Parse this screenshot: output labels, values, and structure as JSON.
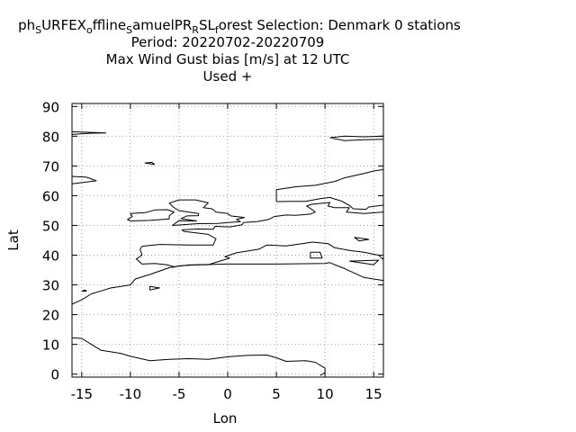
{
  "title": {
    "line1_parts": [
      {
        "t": "ph",
        "s": false
      },
      {
        "t": "S",
        "s": true
      },
      {
        "t": "URFEX",
        "s": false
      },
      {
        "t": "o",
        "s": true
      },
      {
        "t": "ffline",
        "s": false
      },
      {
        "t": "S",
        "s": true
      },
      {
        "t": "amuelPR",
        "s": false
      },
      {
        "t": "R",
        "s": true
      },
      {
        "t": "SL",
        "s": false
      },
      {
        "t": "f",
        "s": true
      },
      {
        "t": "orest   Selection: Denmark      0 stations",
        "s": false
      }
    ],
    "line2": "Period: 20220702-20220709",
    "line3": "Max Wind Gust bias [m/s] at  12 UTC",
    "line4": "Used   +"
  },
  "chart_data": {
    "type": "scatter",
    "xlabel": "Lon",
    "ylabel": "Lat",
    "xlim": [
      -16,
      16
    ],
    "ylim": [
      -1,
      91
    ],
    "xticks": [
      -15,
      -10,
      -5,
      0,
      5,
      10,
      15
    ],
    "yticks": [
      0,
      10,
      20,
      30,
      40,
      50,
      60,
      70,
      80,
      90
    ],
    "grid": true,
    "series": [],
    "coastlines": [
      [
        [
          -16,
          23.5
        ],
        [
          -15,
          25
        ],
        [
          -14,
          27
        ],
        [
          -13,
          28
        ],
        [
          -12,
          29
        ],
        [
          -10,
          30
        ],
        [
          -9.5,
          32
        ],
        [
          -8,
          33.5
        ],
        [
          -6,
          35.8
        ],
        [
          -5.5,
          36
        ],
        [
          -5,
          36.4
        ],
        [
          -3,
          36.8
        ],
        [
          0,
          37
        ],
        [
          5,
          37
        ],
        [
          10,
          37.2
        ],
        [
          10.5,
          37.5
        ],
        [
          11,
          36.8
        ],
        [
          12,
          35.5
        ],
        [
          14,
          32.5
        ],
        [
          15,
          32
        ],
        [
          16,
          31.5
        ]
      ],
      [
        [
          -16,
          12.2
        ],
        [
          -15,
          12
        ],
        [
          -14,
          10
        ],
        [
          -13,
          8
        ],
        [
          -11,
          7
        ],
        [
          -10,
          6
        ],
        [
          -8,
          4.5
        ],
        [
          -6,
          5
        ],
        [
          -4,
          5.2
        ],
        [
          -2,
          5
        ],
        [
          0,
          5.8
        ],
        [
          2,
          6.3
        ],
        [
          4,
          6.4
        ],
        [
          5,
          5.5
        ],
        [
          6,
          4.3
        ],
        [
          8,
          4.5
        ],
        [
          9,
          4
        ],
        [
          9.5,
          3
        ],
        [
          10,
          2
        ],
        [
          10,
          0.5
        ],
        [
          9.5,
          -0.5
        ]
      ],
      [
        [
          -8.8,
          43
        ],
        [
          -9,
          42
        ],
        [
          -8.8,
          40
        ],
        [
          -9.4,
          38.7
        ],
        [
          -8.8,
          37
        ],
        [
          -7.5,
          37.2
        ],
        [
          -6.3,
          36.8
        ],
        [
          -5.5,
          36.1
        ],
        [
          -4,
          36.7
        ],
        [
          -2,
          36.8
        ],
        [
          -0.5,
          38.3
        ],
        [
          0.2,
          39
        ],
        [
          -0.3,
          39.5
        ],
        [
          0.9,
          40.8
        ],
        [
          3.2,
          42
        ],
        [
          4,
          43.4
        ],
        [
          6,
          43.1
        ],
        [
          7.5,
          43.8
        ],
        [
          8.7,
          44.4
        ],
        [
          10.3,
          43.9
        ],
        [
          11,
          42.5
        ],
        [
          12.5,
          41.6
        ],
        [
          14,
          41
        ],
        [
          15.5,
          40
        ],
        [
          16,
          38.5
        ]
      ],
      [
        [
          -8.8,
          43
        ],
        [
          -7,
          43.6
        ],
        [
          -4,
          43.4
        ],
        [
          -1.5,
          43.4
        ],
        [
          -1.2,
          45.5
        ],
        [
          -2,
          47
        ],
        [
          -4.5,
          48
        ],
        [
          -4.7,
          48.5
        ],
        [
          -3,
          48.8
        ],
        [
          -1.5,
          48.7
        ],
        [
          -1.3,
          49.7
        ],
        [
          0.2,
          49.5
        ],
        [
          1.5,
          50.2
        ],
        [
          1.6,
          51
        ],
        [
          3,
          51.3
        ],
        [
          4.2,
          52
        ],
        [
          4.8,
          53
        ],
        [
          6,
          53.5
        ],
        [
          7,
          53.4
        ],
        [
          8.5,
          53.8
        ],
        [
          9,
          54.5
        ],
        [
          8.6,
          55.5
        ],
        [
          8.1,
          56.5
        ],
        [
          8.6,
          57.1
        ],
        [
          10.5,
          57.7
        ],
        [
          10.3,
          56.5
        ],
        [
          11,
          56
        ],
        [
          12.5,
          56
        ],
        [
          12.2,
          54.5
        ],
        [
          14,
          54
        ],
        [
          16,
          54.5
        ]
      ],
      [
        [
          -5.7,
          50
        ],
        [
          -3,
          50.6
        ],
        [
          -1,
          50.7
        ],
        [
          1.3,
          51.3
        ],
        [
          0.9,
          52
        ],
        [
          1.7,
          52.7
        ],
        [
          0.3,
          53.2
        ],
        [
          0,
          54
        ],
        [
          -1.2,
          54.5
        ],
        [
          -1.6,
          55.6
        ],
        [
          -2.5,
          56
        ],
        [
          -2,
          57.6
        ],
        [
          -3.3,
          58.6
        ],
        [
          -5,
          58.6
        ],
        [
          -6,
          57.5
        ],
        [
          -5.6,
          56.2
        ],
        [
          -5,
          55
        ],
        [
          -4.5,
          54.7
        ],
        [
          -3,
          54
        ],
        [
          -3,
          53.3
        ],
        [
          -4.2,
          53.2
        ],
        [
          -4.8,
          52.3
        ],
        [
          -3.2,
          51.5
        ],
        [
          -5,
          51.6
        ],
        [
          -5.7,
          50
        ]
      ],
      [
        [
          -10,
          51.5
        ],
        [
          -8,
          51.7
        ],
        [
          -6,
          52.2
        ],
        [
          -6,
          53.3
        ],
        [
          -5.5,
          54.5
        ],
        [
          -6.2,
          55.3
        ],
        [
          -7.5,
          55.2
        ],
        [
          -8.5,
          54.3
        ],
        [
          -10,
          54
        ],
        [
          -9.8,
          53
        ],
        [
          -10.3,
          52
        ],
        [
          -10,
          51.5
        ]
      ],
      [
        [
          -24,
          65
        ],
        [
          -22,
          63.8
        ],
        [
          -19,
          63.5
        ],
        [
          -16,
          64
        ],
        [
          -13.5,
          65
        ],
        [
          -14.5,
          66.2
        ],
        [
          -16,
          66.5
        ],
        [
          -18,
          66.2
        ],
        [
          -22,
          66.4
        ],
        [
          -24,
          65
        ]
      ],
      [
        [
          5,
          58
        ],
        [
          5,
          60
        ],
        [
          5,
          62
        ],
        [
          7,
          63
        ],
        [
          9,
          63.5
        ],
        [
          11,
          64.8
        ],
        [
          12,
          66
        ],
        [
          14,
          67.5
        ],
        [
          15,
          68.3
        ],
        [
          16,
          68.8
        ]
      ],
      [
        [
          5,
          58
        ],
        [
          6.5,
          58.1
        ],
        [
          8,
          58.1
        ],
        [
          9.5,
          59
        ],
        [
          10.5,
          59.4
        ],
        [
          11,
          58.9
        ],
        [
          11.7,
          58.2
        ],
        [
          12.5,
          56.7
        ],
        [
          12.9,
          55.6
        ],
        [
          14.2,
          55.4
        ],
        [
          14.5,
          56.2
        ],
        [
          16,
          56.8
        ]
      ],
      [
        [
          -16,
          80.6
        ],
        [
          -14,
          81
        ],
        [
          -12.5,
          81.1
        ],
        [
          -15,
          81.4
        ],
        [
          -16,
          81.5
        ]
      ],
      [
        [
          10.5,
          79.5
        ],
        [
          12,
          80
        ],
        [
          14,
          79.8
        ],
        [
          16,
          80
        ],
        [
          16,
          79
        ],
        [
          14,
          78.8
        ],
        [
          12,
          78.5
        ],
        [
          10.5,
          79.5
        ]
      ],
      [
        [
          -8,
          28.3
        ],
        [
          -7,
          29
        ],
        [
          -8,
          29.5
        ],
        [
          -8,
          28.3
        ]
      ],
      [
        [
          -15,
          27.8
        ],
        [
          -14.5,
          28
        ],
        [
          -14.7,
          28.3
        ],
        [
          -15,
          27.8
        ]
      ],
      [
        [
          8.5,
          41
        ],
        [
          9.5,
          41
        ],
        [
          9.7,
          39
        ],
        [
          8.5,
          39
        ],
        [
          8.5,
          41
        ]
      ],
      [
        [
          12.5,
          38
        ],
        [
          15.5,
          38.3
        ],
        [
          15,
          36.8
        ],
        [
          12.5,
          38
        ]
      ],
      [
        [
          13,
          46
        ],
        [
          14.5,
          45.3
        ],
        [
          13.5,
          44.8
        ],
        [
          13,
          46
        ]
      ],
      [
        [
          -7.5,
          70.5
        ],
        [
          -8.5,
          71
        ],
        [
          -7.8,
          71.2
        ],
        [
          -7.5,
          70.5
        ]
      ]
    ]
  }
}
